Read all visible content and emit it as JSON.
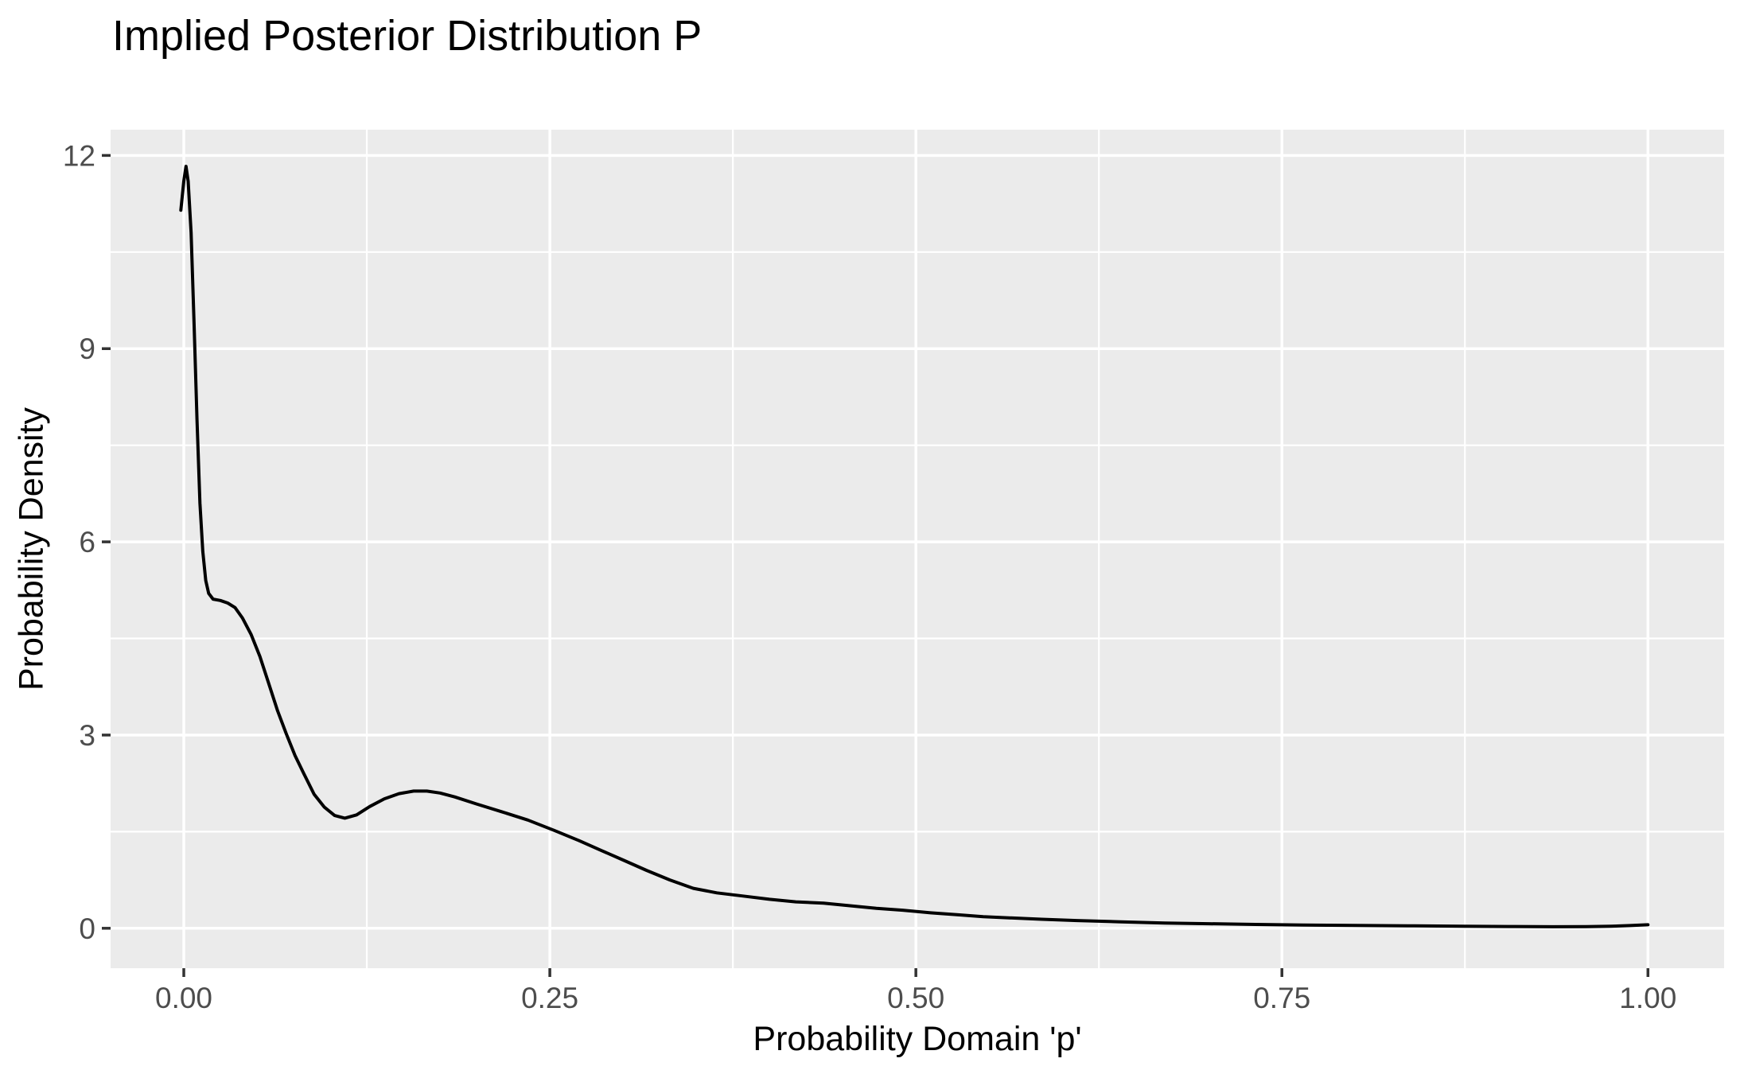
{
  "page": {
    "title": "Implied Posterior Distribution P"
  },
  "colors": {
    "background": "#FFFFFF",
    "panel_bg": "#EBEBEB",
    "grid": "#FFFFFF",
    "curve": "#000000",
    "tick_label": "#4D4D4D",
    "tick_mark": "#333333",
    "title_color": "#000000"
  },
  "chart_data": {
    "type": "line",
    "title": "Implied Posterior Distribution P",
    "xlabel": "Probability Domain 'p'",
    "ylabel": "Probability Density",
    "grid": "white major and minor gridlines on grey panel (ggplot style)",
    "legend": false,
    "x_axis": {
      "range": [
        -0.05,
        1.052
      ],
      "tick_values": [
        0.0,
        0.25,
        0.5,
        0.75,
        1.0
      ],
      "tick_labels": [
        "0.00",
        "0.25",
        "0.50",
        "0.75",
        "1.00"
      ],
      "minor_ticks": [
        0.125,
        0.375,
        0.625,
        0.875
      ]
    },
    "y_axis": {
      "range": [
        -0.62,
        12.4
      ],
      "tick_values": [
        0,
        3,
        6,
        9,
        12
      ],
      "tick_labels": [
        "0",
        "3",
        "6",
        "9",
        "12"
      ],
      "minor_ticks": [
        1.5,
        4.5,
        7.5,
        10.5
      ]
    },
    "series": [
      {
        "name": "posterior-density-curve",
        "color": "#000000",
        "peak": {
          "x": 0.002,
          "y": 11.83
        },
        "local_min": {
          "x": 0.11,
          "y": 1.71
        },
        "local_max": {
          "x": 0.16,
          "y": 2.13
        },
        "points": [
          [
            -0.002,
            11.15
          ],
          [
            0.0,
            11.6
          ],
          [
            0.0015,
            11.83
          ],
          [
            0.003,
            11.6
          ],
          [
            0.005,
            10.8
          ],
          [
            0.007,
            9.4
          ],
          [
            0.009,
            7.9
          ],
          [
            0.011,
            6.6
          ],
          [
            0.013,
            5.85
          ],
          [
            0.015,
            5.4
          ],
          [
            0.017,
            5.2
          ],
          [
            0.02,
            5.11
          ],
          [
            0.025,
            5.09
          ],
          [
            0.03,
            5.05
          ],
          [
            0.035,
            4.98
          ],
          [
            0.04,
            4.82
          ],
          [
            0.046,
            4.56
          ],
          [
            0.052,
            4.22
          ],
          [
            0.058,
            3.8
          ],
          [
            0.064,
            3.38
          ],
          [
            0.07,
            3.02
          ],
          [
            0.076,
            2.68
          ],
          [
            0.082,
            2.4
          ],
          [
            0.089,
            2.08
          ],
          [
            0.096,
            1.88
          ],
          [
            0.103,
            1.75
          ],
          [
            0.11,
            1.71
          ],
          [
            0.118,
            1.76
          ],
          [
            0.127,
            1.89
          ],
          [
            0.137,
            2.01
          ],
          [
            0.147,
            2.09
          ],
          [
            0.157,
            2.13
          ],
          [
            0.166,
            2.13
          ],
          [
            0.175,
            2.1
          ],
          [
            0.185,
            2.04
          ],
          [
            0.2,
            1.93
          ],
          [
            0.217,
            1.81
          ],
          [
            0.235,
            1.68
          ],
          [
            0.253,
            1.52
          ],
          [
            0.27,
            1.36
          ],
          [
            0.285,
            1.21
          ],
          [
            0.3,
            1.06
          ],
          [
            0.316,
            0.9
          ],
          [
            0.332,
            0.75
          ],
          [
            0.348,
            0.62
          ],
          [
            0.364,
            0.55
          ],
          [
            0.382,
            0.5
          ],
          [
            0.4,
            0.45
          ],
          [
            0.418,
            0.41
          ],
          [
            0.437,
            0.39
          ],
          [
            0.455,
            0.35
          ],
          [
            0.473,
            0.31
          ],
          [
            0.491,
            0.28
          ],
          [
            0.51,
            0.24
          ],
          [
            0.528,
            0.21
          ],
          [
            0.546,
            0.18
          ],
          [
            0.566,
            0.16
          ],
          [
            0.586,
            0.14
          ],
          [
            0.61,
            0.12
          ],
          [
            0.64,
            0.1
          ],
          [
            0.67,
            0.08
          ],
          [
            0.7,
            0.07
          ],
          [
            0.732,
            0.06
          ],
          [
            0.764,
            0.05
          ],
          [
            0.8,
            0.045
          ],
          [
            0.836,
            0.038
          ],
          [
            0.872,
            0.032
          ],
          [
            0.905,
            0.027
          ],
          [
            0.935,
            0.024
          ],
          [
            0.958,
            0.025
          ],
          [
            0.975,
            0.031
          ],
          [
            0.988,
            0.042
          ],
          [
            1.0,
            0.055
          ]
        ]
      }
    ]
  }
}
